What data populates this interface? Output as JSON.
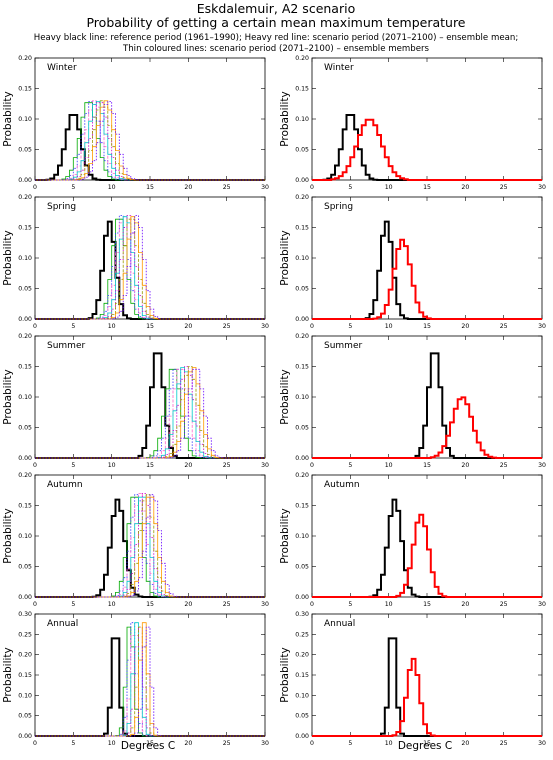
{
  "header": {
    "title": "Eskdalemuir, A2 scenario",
    "subtitle": "Probability of getting a certain mean maximum temperature",
    "caption_line1": "Heavy black line: reference period (1961–1990); Heavy red line: scenario period (2071–2100) – ensemble mean;",
    "caption_line2": "Thin coloured lines: scenario period (2071–2100) – ensemble members"
  },
  "axes": {
    "xlabel": "Degrees C",
    "ylabel": "Probability",
    "xlim": [
      0,
      30
    ],
    "xticks": [
      "0",
      "5",
      "10",
      "15",
      "20",
      "25",
      "30"
    ]
  },
  "colors": {
    "reference": "#000000",
    "ensemble_mean": "#ff0000",
    "members": [
      "#00aa00",
      "#3333ff",
      "#ff66cc",
      "#00cccc",
      "#cc00cc",
      "#999900",
      "#ff9900",
      "#6600ff",
      "#009966",
      "#990033"
    ]
  },
  "chart_data": [
    {
      "type": "line",
      "season": "Winter",
      "panel": "ensemble-members",
      "ylim": [
        0,
        0.2
      ],
      "yticks": [
        "0.00",
        "0.05",
        "0.10",
        "0.15",
        "0.20"
      ],
      "series": [
        {
          "role": "reference",
          "mean": 5.0,
          "sd": 1.0,
          "peak": 0.11
        },
        {
          "role": "members",
          "means": [
            7.0,
            7.4,
            7.8,
            8.1,
            8.5,
            8.8,
            9.2,
            9.6
          ],
          "sd": 1.1,
          "peak": 0.13
        }
      ]
    },
    {
      "type": "line",
      "season": "Winter",
      "panel": "ensemble-mean",
      "ylim": [
        0,
        0.2
      ],
      "yticks": [
        "0.00",
        "0.05",
        "0.10",
        "0.15",
        "0.20"
      ],
      "series": [
        {
          "role": "reference",
          "mean": 5.0,
          "sd": 1.0,
          "peak": 0.11
        },
        {
          "role": "ensemble_mean",
          "mean": 7.5,
          "sd": 1.6,
          "peak": 0.1
        }
      ]
    },
    {
      "type": "line",
      "season": "Spring",
      "panel": "ensemble-members",
      "ylim": [
        0,
        0.2
      ],
      "yticks": [
        "0.00",
        "0.05",
        "0.10",
        "0.15",
        "0.20"
      ],
      "series": [
        {
          "role": "reference",
          "mean": 9.7,
          "sd": 0.8,
          "peak": 0.16
        },
        {
          "role": "members",
          "means": [
            11.0,
            11.3,
            11.6,
            11.9,
            12.2,
            12.5,
            12.9,
            13.3
          ],
          "sd": 0.9,
          "peak": 0.17
        }
      ]
    },
    {
      "type": "line",
      "season": "Spring",
      "panel": "ensemble-mean",
      "ylim": [
        0,
        0.2
      ],
      "yticks": [
        "0.00",
        "0.05",
        "0.10",
        "0.15",
        "0.20"
      ],
      "series": [
        {
          "role": "reference",
          "mean": 9.7,
          "sd": 0.8,
          "peak": 0.16
        },
        {
          "role": "ensemble_mean",
          "mean": 11.8,
          "sd": 1.1,
          "peak": 0.13
        }
      ]
    },
    {
      "type": "line",
      "season": "Summer",
      "panel": "ensemble-members",
      "ylim": [
        0,
        0.2
      ],
      "yticks": [
        "0.00",
        "0.05",
        "0.10",
        "0.15",
        "0.20"
      ],
      "series": [
        {
          "role": "reference",
          "mean": 16.0,
          "sd": 0.8,
          "peak": 0.18
        },
        {
          "role": "members",
          "means": [
            18.0,
            18.5,
            19.0,
            19.4,
            19.8,
            20.2,
            20.6,
            21.0
          ],
          "sd": 1.0,
          "peak": 0.15
        }
      ]
    },
    {
      "type": "line",
      "season": "Summer",
      "panel": "ensemble-mean",
      "ylim": [
        0,
        0.2
      ],
      "yticks": [
        "0.00",
        "0.05",
        "0.10",
        "0.15",
        "0.20"
      ],
      "series": [
        {
          "role": "reference",
          "mean": 16.0,
          "sd": 0.8,
          "peak": 0.18
        },
        {
          "role": "ensemble_mean",
          "mean": 19.6,
          "sd": 1.3,
          "peak": 0.1
        }
      ]
    },
    {
      "type": "line",
      "season": "Autumn",
      "panel": "ensemble-members",
      "ylim": [
        0,
        0.2
      ],
      "yticks": [
        "0.00",
        "0.05",
        "0.10",
        "0.15",
        "0.20"
      ],
      "series": [
        {
          "role": "reference",
          "mean": 10.8,
          "sd": 0.9,
          "peak": 0.16
        },
        {
          "role": "members",
          "means": [
            13.0,
            13.4,
            13.7,
            14.0,
            14.3,
            14.6,
            15.0,
            15.4
          ],
          "sd": 0.9,
          "peak": 0.17
        }
      ]
    },
    {
      "type": "line",
      "season": "Autumn",
      "panel": "ensemble-mean",
      "ylim": [
        0,
        0.2
      ],
      "yticks": [
        "0.00",
        "0.05",
        "0.10",
        "0.15",
        "0.20"
      ],
      "series": [
        {
          "role": "reference",
          "mean": 10.8,
          "sd": 0.9,
          "peak": 0.16
        },
        {
          "role": "ensemble_mean",
          "mean": 14.2,
          "sd": 1.0,
          "peak": 0.135
        }
      ]
    },
    {
      "type": "line",
      "season": "Annual",
      "panel": "ensemble-members",
      "ylim": [
        0,
        0.3
      ],
      "yticks": [
        "0.00",
        "0.05",
        "0.10",
        "0.15",
        "0.20",
        "0.25",
        "0.30"
      ],
      "series": [
        {
          "role": "reference",
          "mean": 10.5,
          "sd": 0.45,
          "peak": 0.28
        },
        {
          "role": "members",
          "means": [
            12.4,
            12.7,
            13.0,
            13.3,
            13.6,
            13.9,
            14.2,
            14.6
          ],
          "sd": 0.5,
          "peak": 0.28
        }
      ]
    },
    {
      "type": "line",
      "season": "Annual",
      "panel": "ensemble-mean",
      "ylim": [
        0,
        0.3
      ],
      "yticks": [
        "0.00",
        "0.05",
        "0.10",
        "0.15",
        "0.20",
        "0.25",
        "0.30"
      ],
      "series": [
        {
          "role": "reference",
          "mean": 10.5,
          "sd": 0.45,
          "peak": 0.28
        },
        {
          "role": "ensemble_mean",
          "mean": 13.2,
          "sd": 0.8,
          "peak": 0.19
        }
      ]
    }
  ]
}
